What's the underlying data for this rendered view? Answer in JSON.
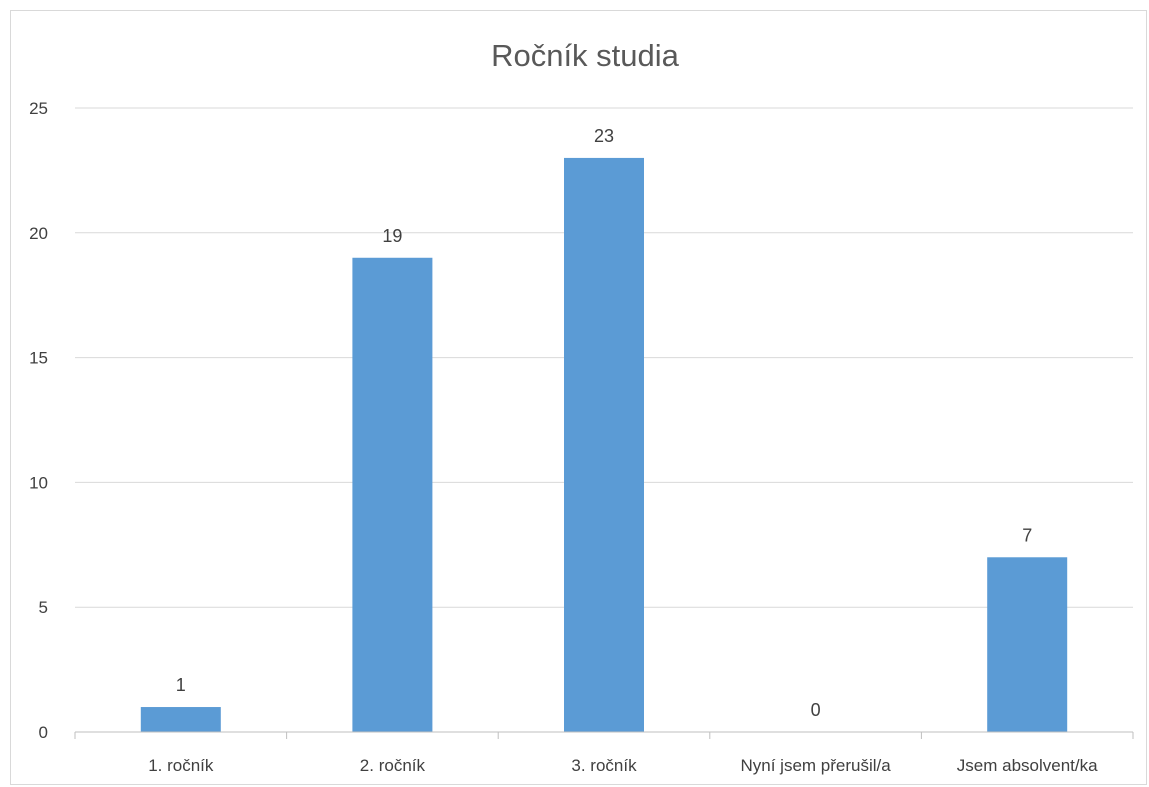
{
  "chart_data": {
    "type": "bar",
    "title": "Ročník studia",
    "categories": [
      "1. ročník",
      "2. ročník",
      "3. ročník",
      "Nyní jsem přerušil/a",
      "Jsem absolvent/ka"
    ],
    "values": [
      1,
      19,
      23,
      0,
      7
    ],
    "ylim": [
      0,
      25
    ],
    "yticks": [
      "0",
      "5",
      "10",
      "15",
      "20",
      "25"
    ],
    "grid": true,
    "bar_color": "#5b9bd5",
    "data_labels": [
      "1",
      "19",
      "23",
      "0",
      "7"
    ]
  }
}
